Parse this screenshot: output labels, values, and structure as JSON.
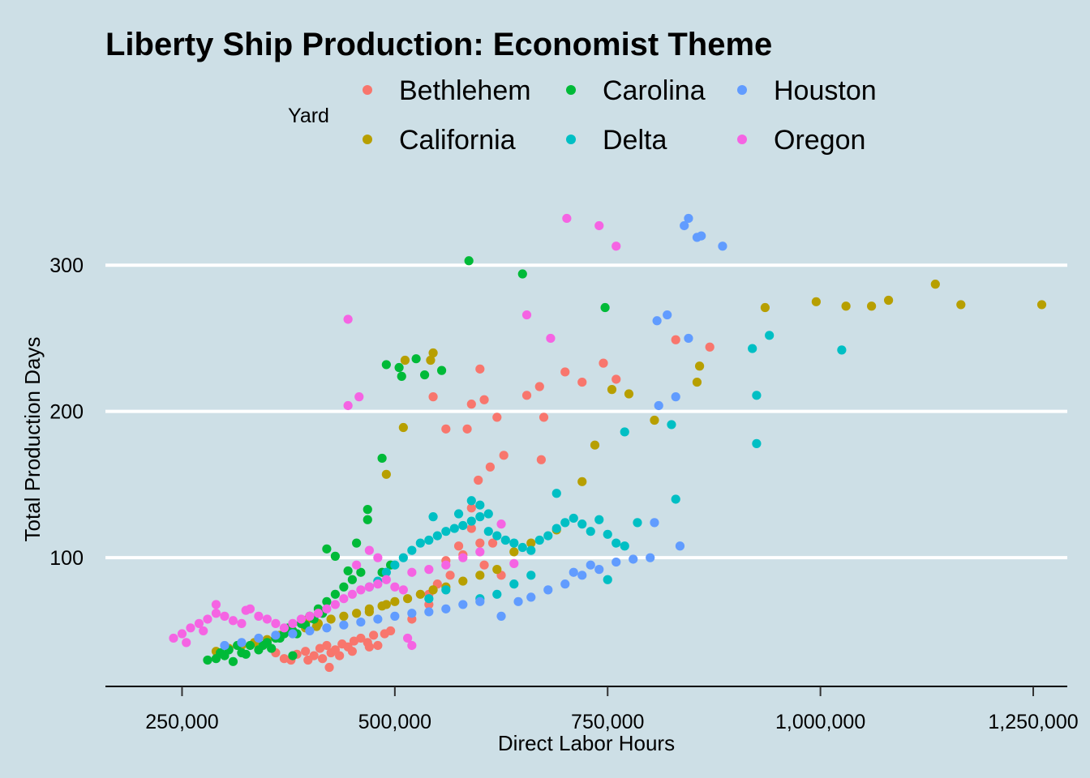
{
  "chart_data": {
    "type": "scatter",
    "title": "Liberty Ship Production: Economist Theme",
    "xlabel": "Direct Labor Hours",
    "ylabel": "Total Production Days",
    "xlim": [
      160000,
      1290000
    ],
    "ylim": [
      12,
      340
    ],
    "x_ticks": [
      250000,
      500000,
      750000,
      1000000,
      1250000
    ],
    "x_tick_labels": [
      "250,000",
      "500,000",
      "750,000",
      "1,000,000",
      "1,250,000"
    ],
    "y_ticks": [
      100,
      200,
      300
    ],
    "y_tick_labels": [
      "100",
      "200",
      "300"
    ],
    "grid": "horizontal",
    "legend": {
      "title": "Yard",
      "position": "top"
    },
    "series": [
      {
        "name": "Bethlehem",
        "color": "#F8766D",
        "points": [
          [
            370000,
            31
          ],
          [
            385000,
            34
          ],
          [
            395000,
            36
          ],
          [
            405000,
            33
          ],
          [
            412000,
            38
          ],
          [
            420000,
            40
          ],
          [
            425000,
            35
          ],
          [
            430000,
            37
          ],
          [
            438000,
            41
          ],
          [
            445000,
            39
          ],
          [
            452000,
            43
          ],
          [
            460000,
            45
          ],
          [
            468000,
            42
          ],
          [
            475000,
            47
          ],
          [
            480000,
            40
          ],
          [
            488000,
            48
          ],
          [
            495000,
            50
          ],
          [
            360000,
            35
          ],
          [
            378000,
            30
          ],
          [
            398000,
            30
          ],
          [
            415000,
            31
          ],
          [
            423000,
            25
          ],
          [
            435000,
            33
          ],
          [
            450000,
            36
          ],
          [
            470000,
            39
          ],
          [
            520000,
            58
          ],
          [
            540000,
            68
          ],
          [
            560000,
            98
          ],
          [
            575000,
            108
          ],
          [
            590000,
            120
          ],
          [
            605000,
            95
          ],
          [
            615000,
            110
          ],
          [
            625000,
            88
          ],
          [
            590000,
            134
          ],
          [
            598000,
            153
          ],
          [
            612000,
            162
          ],
          [
            628000,
            170
          ],
          [
            672000,
            167
          ],
          [
            585000,
            188
          ],
          [
            620000,
            196
          ],
          [
            655000,
            211
          ],
          [
            670000,
            217
          ],
          [
            675000,
            196
          ],
          [
            700000,
            227
          ],
          [
            720000,
            220
          ],
          [
            745000,
            233
          ],
          [
            760000,
            222
          ],
          [
            590000,
            205
          ],
          [
            605000,
            208
          ],
          [
            600000,
            229
          ],
          [
            545000,
            210
          ],
          [
            560000,
            188
          ],
          [
            830000,
            249
          ],
          [
            870000,
            244
          ],
          [
            540000,
            75
          ],
          [
            550000,
            82
          ],
          [
            565000,
            88
          ],
          [
            580000,
            102
          ],
          [
            600000,
            110
          ]
        ]
      },
      {
        "name": "California",
        "color": "#B79F00",
        "points": [
          [
            290000,
            36
          ],
          [
            305000,
            38
          ],
          [
            320000,
            40
          ],
          [
            335000,
            42
          ],
          [
            350000,
            44
          ],
          [
            365000,
            47
          ],
          [
            380000,
            50
          ],
          [
            395000,
            52
          ],
          [
            410000,
            55
          ],
          [
            425000,
            58
          ],
          [
            440000,
            60
          ],
          [
            455000,
            62
          ],
          [
            470000,
            65
          ],
          [
            485000,
            67
          ],
          [
            500000,
            70
          ],
          [
            515000,
            72
          ],
          [
            530000,
            75
          ],
          [
            545000,
            78
          ],
          [
            560000,
            80
          ],
          [
            580000,
            84
          ],
          [
            600000,
            88
          ],
          [
            620000,
            92
          ],
          [
            640000,
            104
          ],
          [
            660000,
            110
          ],
          [
            690000,
            119
          ],
          [
            720000,
            152
          ],
          [
            735000,
            177
          ],
          [
            755000,
            215
          ],
          [
            775000,
            212
          ],
          [
            805000,
            194
          ],
          [
            855000,
            220
          ],
          [
            858000,
            231
          ],
          [
            935000,
            271
          ],
          [
            995000,
            275
          ],
          [
            1030000,
            272
          ],
          [
            1060000,
            272
          ],
          [
            1080000,
            276
          ],
          [
            1135000,
            287
          ],
          [
            1165000,
            273
          ],
          [
            1260000,
            273
          ],
          [
            545000,
            240
          ],
          [
            542000,
            235
          ],
          [
            512000,
            235
          ],
          [
            510000,
            189
          ],
          [
            490000,
            157
          ],
          [
            398000,
            58
          ],
          [
            408000,
            53
          ],
          [
            470000,
            63
          ],
          [
            490000,
            68
          ]
        ]
      },
      {
        "name": "Carolina",
        "color": "#00BA38",
        "points": [
          [
            280000,
            30
          ],
          [
            290000,
            31
          ],
          [
            300000,
            33
          ],
          [
            310000,
            29
          ],
          [
            320000,
            35
          ],
          [
            330000,
            40
          ],
          [
            340000,
            37
          ],
          [
            350000,
            42
          ],
          [
            360000,
            45
          ],
          [
            370000,
            48
          ],
          [
            380000,
            50
          ],
          [
            390000,
            55
          ],
          [
            400000,
            60
          ],
          [
            410000,
            65
          ],
          [
            420000,
            70
          ],
          [
            430000,
            75
          ],
          [
            440000,
            80
          ],
          [
            450000,
            85
          ],
          [
            460000,
            90
          ],
          [
            420000,
            106
          ],
          [
            430000,
            101
          ],
          [
            445000,
            91
          ],
          [
            455000,
            110
          ],
          [
            468000,
            133
          ],
          [
            468000,
            126
          ],
          [
            485000,
            168
          ],
          [
            490000,
            232
          ],
          [
            505000,
            230
          ],
          [
            508000,
            224
          ],
          [
            525000,
            236
          ],
          [
            535000,
            225
          ],
          [
            555000,
            228
          ],
          [
            587000,
            303
          ],
          [
            650000,
            294
          ],
          [
            747000,
            271
          ],
          [
            485000,
            90
          ],
          [
            495000,
            95
          ],
          [
            380000,
            33
          ],
          [
            295000,
            35
          ],
          [
            305000,
            37
          ],
          [
            315000,
            40
          ],
          [
            325000,
            34
          ],
          [
            345000,
            40
          ],
          [
            355000,
            38
          ],
          [
            365000,
            45
          ],
          [
            375000,
            52
          ],
          [
            385000,
            48
          ],
          [
            395000,
            54
          ],
          [
            405000,
            58
          ],
          [
            415000,
            62
          ]
        ]
      },
      {
        "name": "Delta",
        "color": "#00BFC4",
        "points": [
          [
            470000,
            80
          ],
          [
            480000,
            84
          ],
          [
            490000,
            90
          ],
          [
            500000,
            95
          ],
          [
            510000,
            100
          ],
          [
            520000,
            105
          ],
          [
            530000,
            110
          ],
          [
            540000,
            112
          ],
          [
            550000,
            115
          ],
          [
            560000,
            118
          ],
          [
            570000,
            120
          ],
          [
            580000,
            122
          ],
          [
            590000,
            125
          ],
          [
            600000,
            128
          ],
          [
            610000,
            118
          ],
          [
            620000,
            115
          ],
          [
            630000,
            112
          ],
          [
            640000,
            110
          ],
          [
            650000,
            107
          ],
          [
            660000,
            105
          ],
          [
            670000,
            112
          ],
          [
            680000,
            115
          ],
          [
            690000,
            120
          ],
          [
            700000,
            124
          ],
          [
            710000,
            127
          ],
          [
            720000,
            123
          ],
          [
            730000,
            118
          ],
          [
            740000,
            126
          ],
          [
            750000,
            116
          ],
          [
            760000,
            110
          ],
          [
            770000,
            108
          ],
          [
            785000,
            124
          ],
          [
            830000,
            140
          ],
          [
            770000,
            186
          ],
          [
            825000,
            191
          ],
          [
            590000,
            139
          ],
          [
            600000,
            136
          ],
          [
            610000,
            130
          ],
          [
            575000,
            130
          ],
          [
            545000,
            128
          ],
          [
            690000,
            144
          ],
          [
            920000,
            243
          ],
          [
            940000,
            252
          ],
          [
            1025000,
            242
          ],
          [
            925000,
            211
          ],
          [
            925000,
            178
          ],
          [
            750000,
            85
          ],
          [
            620000,
            75
          ],
          [
            640000,
            82
          ],
          [
            660000,
            88
          ],
          [
            600000,
            72
          ],
          [
            560000,
            78
          ],
          [
            540000,
            72
          ]
        ]
      },
      {
        "name": "Houston",
        "color": "#619CFF",
        "points": [
          [
            300000,
            40
          ],
          [
            320000,
            42
          ],
          [
            340000,
            45
          ],
          [
            360000,
            47
          ],
          [
            380000,
            48
          ],
          [
            400000,
            50
          ],
          [
            420000,
            52
          ],
          [
            440000,
            54
          ],
          [
            460000,
            56
          ],
          [
            480000,
            58
          ],
          [
            500000,
            60
          ],
          [
            520000,
            62
          ],
          [
            540000,
            63
          ],
          [
            560000,
            65
          ],
          [
            580000,
            68
          ],
          [
            600000,
            70
          ],
          [
            625000,
            60
          ],
          [
            645000,
            70
          ],
          [
            660000,
            73
          ],
          [
            680000,
            78
          ],
          [
            700000,
            82
          ],
          [
            720000,
            88
          ],
          [
            740000,
            92
          ],
          [
            760000,
            97
          ],
          [
            780000,
            99
          ],
          [
            800000,
            100
          ],
          [
            805000,
            124
          ],
          [
            835000,
            108
          ],
          [
            855000,
            319
          ],
          [
            810000,
            204
          ],
          [
            830000,
            210
          ],
          [
            808000,
            262
          ],
          [
            820000,
            266
          ],
          [
            845000,
            250
          ],
          [
            840000,
            327
          ],
          [
            845000,
            332
          ],
          [
            860000,
            320
          ],
          [
            885000,
            313
          ],
          [
            710000,
            90
          ],
          [
            730000,
            95
          ]
        ]
      },
      {
        "name": "Oregon",
        "color": "#F564E3",
        "points": [
          [
            240000,
            45
          ],
          [
            250000,
            48
          ],
          [
            260000,
            52
          ],
          [
            270000,
            55
          ],
          [
            280000,
            58
          ],
          [
            290000,
            62
          ],
          [
            300000,
            60
          ],
          [
            310000,
            57
          ],
          [
            320000,
            55
          ],
          [
            330000,
            65
          ],
          [
            340000,
            60
          ],
          [
            350000,
            58
          ],
          [
            360000,
            55
          ],
          [
            370000,
            52
          ],
          [
            380000,
            55
          ],
          [
            390000,
            58
          ],
          [
            400000,
            60
          ],
          [
            410000,
            62
          ],
          [
            420000,
            65
          ],
          [
            430000,
            68
          ],
          [
            440000,
            72
          ],
          [
            450000,
            75
          ],
          [
            460000,
            78
          ],
          [
            470000,
            80
          ],
          [
            480000,
            82
          ],
          [
            490000,
            85
          ],
          [
            500000,
            80
          ],
          [
            510000,
            78
          ],
          [
            520000,
            90
          ],
          [
            540000,
            92
          ],
          [
            560000,
            95
          ],
          [
            580000,
            100
          ],
          [
            600000,
            104
          ],
          [
            625000,
            123
          ],
          [
            640000,
            96
          ],
          [
            290000,
            68
          ],
          [
            325000,
            64
          ],
          [
            445000,
            263
          ],
          [
            445000,
            204
          ],
          [
            458000,
            210
          ],
          [
            655000,
            266
          ],
          [
            683000,
            250
          ],
          [
            702000,
            332
          ],
          [
            740000,
            327
          ],
          [
            760000,
            313
          ],
          [
            515000,
            45
          ],
          [
            520000,
            40
          ],
          [
            455000,
            95
          ],
          [
            470000,
            105
          ],
          [
            480000,
            100
          ],
          [
            255000,
            42
          ],
          [
            275000,
            50
          ]
        ]
      }
    ]
  }
}
